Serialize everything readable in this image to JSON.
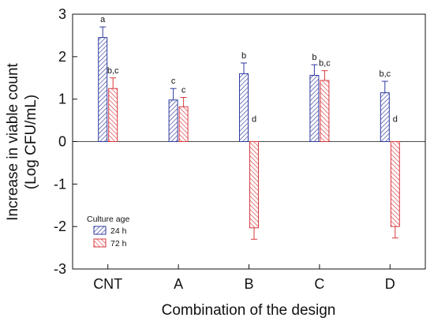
{
  "chart_data": {
    "type": "bar",
    "categories": [
      "CNT",
      "A",
      "B",
      "C",
      "D"
    ],
    "series": [
      {
        "name": "24 h",
        "color": "#2f3a9e",
        "values": [
          2.45,
          0.98,
          1.6,
          1.56,
          1.15
        ],
        "errors": [
          0.25,
          0.27,
          0.25,
          0.25,
          0.27
        ],
        "letters": [
          "a",
          "c",
          "b",
          "b",
          "b,c"
        ]
      },
      {
        "name": "72 h",
        "color": "#d9393e",
        "values": [
          1.25,
          0.82,
          -2.03,
          1.44,
          -2.0
        ],
        "errors": [
          0.25,
          0.22,
          0.27,
          0.23,
          0.27
        ],
        "letters": [
          "b,c",
          "c",
          "d",
          "b,c",
          "d"
        ]
      }
    ],
    "xlabel": "Combination of the design",
    "ylabel_line1": "Increase in viable count",
    "ylabel_line2": "(Log CFU/mL)",
    "ylim": [
      -3,
      3
    ],
    "yticks": [
      "-3",
      "-2",
      "-1",
      "0",
      "1",
      "2",
      "3"
    ],
    "legend": {
      "title": "Culture age",
      "placement": "bottom-left"
    },
    "grid": false
  }
}
